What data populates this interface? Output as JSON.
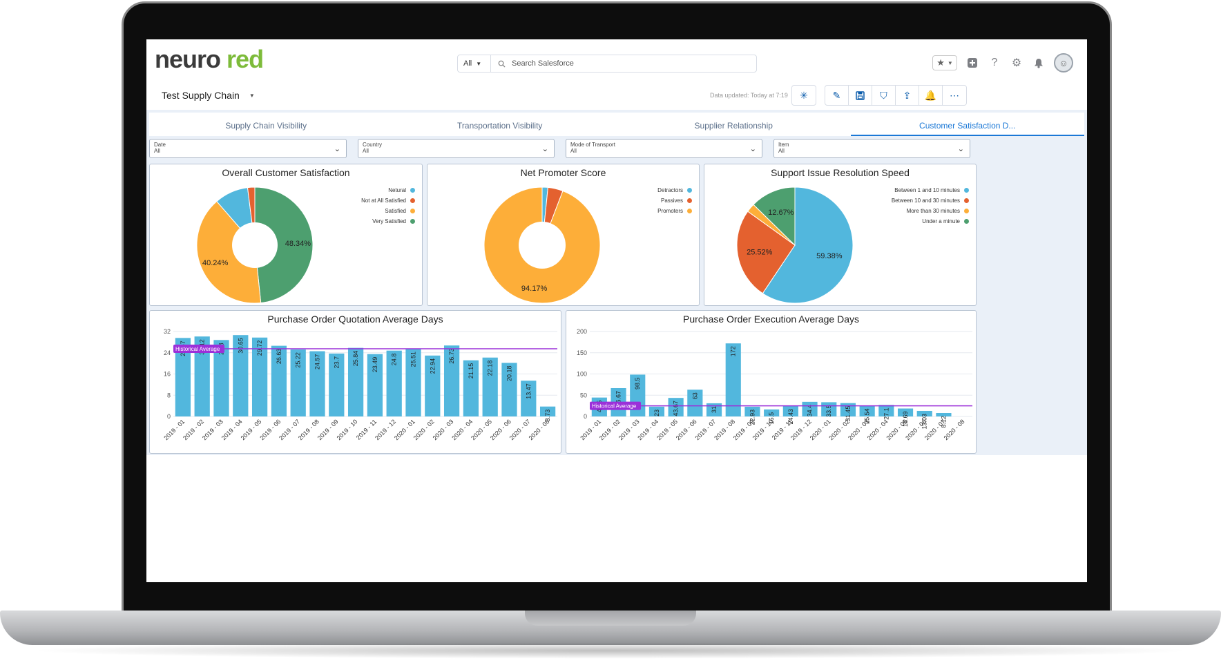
{
  "header": {
    "logo_part1": "neuro",
    "logo_part2": "red",
    "search_scope": "All",
    "search_placeholder": "Search Salesforce"
  },
  "dashboard": {
    "title": "Test Supply Chain",
    "updated": "Data updated: Today at 7:19"
  },
  "tabs": [
    {
      "label": "Supply Chain Visibility"
    },
    {
      "label": "Transportation Visibility"
    },
    {
      "label": "Supplier Relationship"
    },
    {
      "label": "Customer Satisfaction D..."
    }
  ],
  "filters": [
    {
      "label": "Date",
      "value": "All"
    },
    {
      "label": "Country",
      "value": "All"
    },
    {
      "label": "Mode of Transport",
      "value": "All"
    },
    {
      "label": "Item",
      "value": "All"
    }
  ],
  "colors": {
    "blue": "#52b7dd",
    "orange": "#e4612f",
    "yellow": "#fdae39",
    "green": "#4d9f6f",
    "bar": "#52b7dd",
    "average_line": "#9b30d9"
  },
  "chart_data": [
    {
      "type": "pie",
      "title": "Overall Customer Satisfaction",
      "donut": true,
      "labels": [
        "Netural",
        "Not at All Satisfied",
        "Satisfied",
        "Very Satisfied"
      ],
      "values": [
        9.4,
        2.0,
        40.24,
        48.34
      ],
      "data_labels": [
        "",
        "",
        "40.24%",
        "48.34%"
      ],
      "legend": "top-right"
    },
    {
      "type": "pie",
      "title": "Net Promoter Score",
      "donut": true,
      "labels": [
        "Detractors",
        "Passives",
        "Promoters"
      ],
      "values": [
        1.6,
        4.2,
        94.17
      ],
      "data_labels": [
        "",
        "",
        "94.17%"
      ],
      "legend": "top-right"
    },
    {
      "type": "pie",
      "title": "Support Issue Resolution Speed",
      "donut": false,
      "labels": [
        "Between 1 and 10 minutes",
        "Between 10 and 30 minutes",
        "More than 30 minutes",
        "Under a minute"
      ],
      "values": [
        59.38,
        25.52,
        2.43,
        12.67
      ],
      "data_labels": [
        "59.38%",
        "25.52%",
        "",
        "12.67%"
      ],
      "legend": "top-right"
    },
    {
      "type": "bar",
      "title": "Purchase Order Quotation Average Days",
      "categories": [
        "2019 - 01",
        "2019 - 02",
        "2019 - 03",
        "2019 - 04",
        "2019 - 05",
        "2019 - 06",
        "2019 - 07",
        "2019 - 08",
        "2019 - 09",
        "2019 - 10",
        "2019 - 11",
        "2019 - 12",
        "2020 - 01",
        "2020 - 02",
        "2020 - 03",
        "2020 - 04",
        "2020 - 05",
        "2020 - 06",
        "2020 - 07",
        "2020 - 08"
      ],
      "values": [
        29.57,
        30.12,
        28.8,
        30.65,
        29.72,
        26.63,
        25.22,
        24.57,
        23.7,
        25.84,
        23.49,
        24.8,
        25.51,
        22.94,
        26.73,
        21.15,
        22.18,
        20.18,
        13.47,
        3.73
      ],
      "data_labels": [
        "29.57",
        "30.12",
        "28.8",
        "30.65",
        "29.72",
        "26.63",
        "25.22",
        "24.57",
        "23.7",
        "25.84",
        "23.49",
        "24.8",
        "25.51",
        "22.94",
        "26.73",
        "21.15",
        "22.18",
        "20.18",
        "13.47",
        "3.73"
      ],
      "yticks": [
        0,
        8,
        16,
        24,
        32
      ],
      "ylim": [
        0,
        32
      ],
      "reference_line": {
        "label": "Historical Average",
        "value": 25.5
      }
    },
    {
      "type": "bar",
      "title": "Purchase Order Execution Average Days",
      "categories": [
        "2019 - 01",
        "2019 - 02",
        "2019 - 03",
        "2019 - 04",
        "2019 - 05",
        "2019 - 06",
        "2019 - 07",
        "2019 - 08",
        "2019 - 09",
        "2019 - 10",
        "2019 - 11",
        "2019 - 12",
        "2020 - 01",
        "2020 - 02",
        "2020 - 03",
        "2020 - 04",
        "2020 - 05",
        "2020 - 06",
        "2020 - 07",
        "2020 - 08"
      ],
      "values": [
        44.5,
        66.67,
        98.5,
        23,
        43.67,
        63,
        31,
        172,
        22.93,
        16.5,
        24.43,
        34.4,
        33.5,
        31.45,
        25.54,
        27.1,
        18.69,
        13.03,
        8.12,
        0
      ],
      "data_labels": [
        "44.5",
        "66.67",
        "98.5",
        "23",
        "43.67",
        "63",
        "31",
        "172",
        "22.93",
        "16.5",
        "24.43",
        "34.4",
        "33.5",
        "31.45",
        "25.54",
        "27.1",
        "18.69",
        "13.03",
        "8.12",
        ""
      ],
      "yticks": [
        0,
        50,
        100,
        150,
        200
      ],
      "ylim": [
        0,
        200
      ],
      "reference_line": {
        "label": "Historical Average",
        "value": 25
      }
    }
  ]
}
